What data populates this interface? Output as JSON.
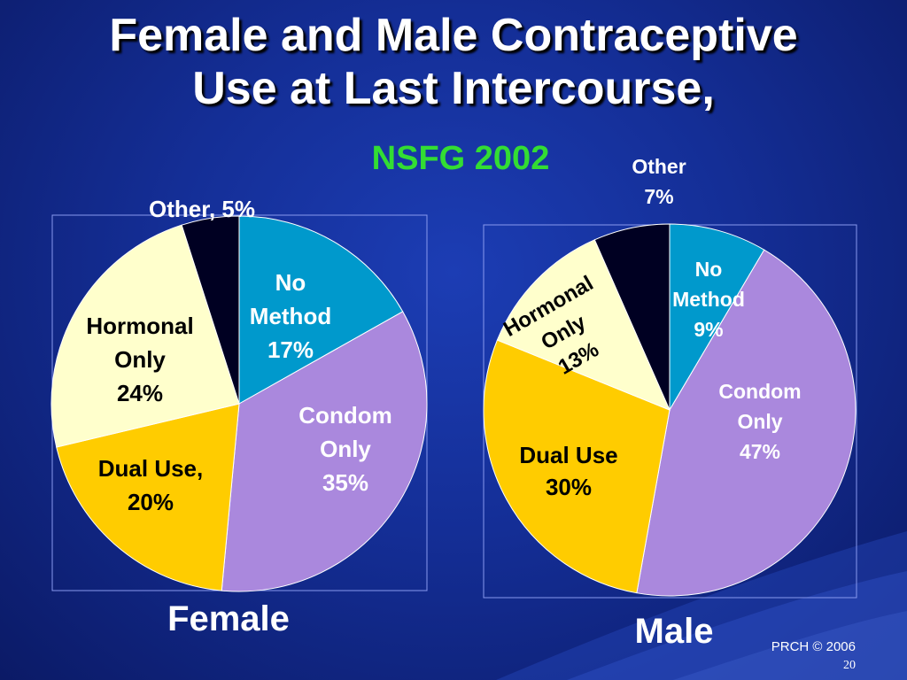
{
  "slide": {
    "title_line1": "Female and Male Contraceptive",
    "title_line2": "Use at Last Intercourse,",
    "subtitle": "NSFG 2002",
    "footer": "PRCH © 2006",
    "page_number": "20"
  },
  "colors": {
    "no_method": "#0099cc",
    "condom_only": "#aa88dd",
    "dual_use": "#ffcc00",
    "hormonal_only": "#ffffcc",
    "other": "#000022",
    "label_light": "#ffffff",
    "label_dark": "#000000"
  },
  "chart_data": [
    {
      "type": "pie",
      "title": "Female",
      "slices": [
        {
          "label": "No Method",
          "value": 17,
          "text": [
            "No",
            "Method",
            "17%"
          ]
        },
        {
          "label": "Condom Only",
          "value": 35,
          "text": [
            "Condom",
            "Only",
            "35%"
          ]
        },
        {
          "label": "Dual Use",
          "value": 20,
          "text": [
            "Dual Use,",
            "20%"
          ]
        },
        {
          "label": "Hormonal Only",
          "value": 24,
          "text": [
            "Hormonal",
            "Only",
            "24%"
          ]
        },
        {
          "label": "Other",
          "value": 5,
          "text": [
            "Other, 5%"
          ]
        }
      ]
    },
    {
      "type": "pie",
      "title": "Male",
      "slices": [
        {
          "label": "No Method",
          "value": 9,
          "text": [
            "No",
            "Method",
            "9%"
          ]
        },
        {
          "label": "Condom Only",
          "value": 47,
          "text": [
            "Condom",
            "Only",
            "47%"
          ]
        },
        {
          "label": "Dual Use",
          "value": 30,
          "text": [
            "Dual Use",
            "30%"
          ]
        },
        {
          "label": "Hormonal Only",
          "value": 13,
          "text": [
            "Hormonal",
            "Only",
            "13%"
          ]
        },
        {
          "label": "Other",
          "value": 7,
          "text": [
            "Other",
            "7%"
          ]
        }
      ]
    }
  ]
}
